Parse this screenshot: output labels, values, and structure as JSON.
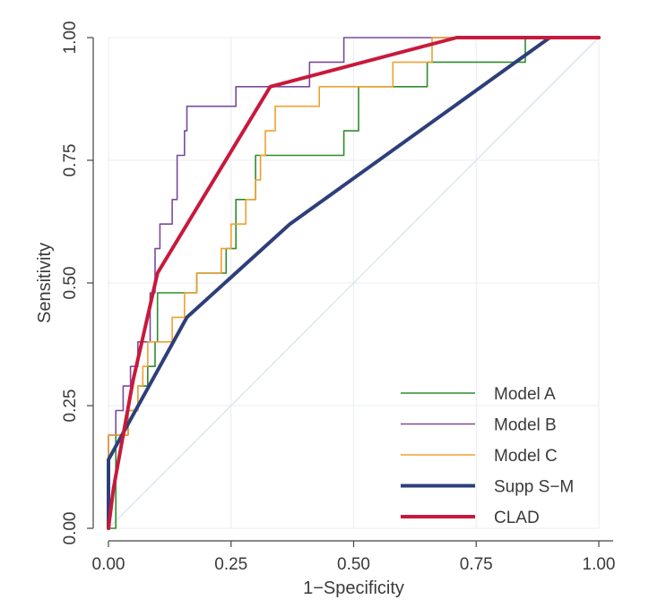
{
  "chart_data": {
    "type": "line",
    "title": "",
    "xlabel": "1−Specificity",
    "ylabel": "Sensitivity",
    "xlim": [
      0,
      1
    ],
    "ylim": [
      0,
      1
    ],
    "xticks": [
      "0.00",
      "0.25",
      "0.50",
      "0.75",
      "1.00"
    ],
    "yticks": [
      "0.00",
      "0.25",
      "0.50",
      "0.75",
      "1.00"
    ],
    "grid": true,
    "legend_position": "bottom-right",
    "reference_line": {
      "x": [
        0,
        1
      ],
      "y": [
        0,
        1
      ],
      "color": "#dfe8ee"
    },
    "series": [
      {
        "name": "Model A",
        "color": "#2e8b2e",
        "width": 1.6,
        "x": [
          0.0,
          0.015,
          0.015,
          0.04,
          0.04,
          0.06,
          0.06,
          0.08,
          0.08,
          0.095,
          0.095,
          0.1,
          0.1,
          0.18,
          0.18,
          0.24,
          0.24,
          0.26,
          0.26,
          0.3,
          0.3,
          0.45,
          0.45,
          0.48,
          0.48,
          0.51,
          0.51,
          0.62,
          0.62,
          0.65,
          0.65,
          0.83,
          0.83,
          0.85,
          0.85,
          0.89,
          1.0
        ],
        "y": [
          0.0,
          0.0,
          0.19,
          0.19,
          0.24,
          0.24,
          0.29,
          0.29,
          0.33,
          0.33,
          0.38,
          0.38,
          0.48,
          0.48,
          0.52,
          0.52,
          0.57,
          0.57,
          0.67,
          0.67,
          0.76,
          0.76,
          0.76,
          0.76,
          0.81,
          0.81,
          0.9,
          0.9,
          0.9,
          0.9,
          0.95,
          0.95,
          0.95,
          0.95,
          1.0,
          1.0,
          1.0
        ]
      },
      {
        "name": "Model B",
        "color": "#7a4a9a",
        "width": 1.6,
        "x": [
          0.0,
          0.0,
          0.015,
          0.015,
          0.03,
          0.03,
          0.045,
          0.045,
          0.06,
          0.06,
          0.085,
          0.085,
          0.095,
          0.095,
          0.105,
          0.105,
          0.13,
          0.13,
          0.14,
          0.14,
          0.155,
          0.155,
          0.16,
          0.16,
          0.21,
          0.21,
          0.26,
          0.26,
          0.27,
          0.27,
          0.36,
          0.36,
          0.41,
          0.41,
          0.42,
          0.42,
          0.48,
          0.48,
          0.57,
          0.57,
          0.63,
          0.63,
          1.0
        ],
        "y": [
          0.0,
          0.19,
          0.19,
          0.24,
          0.24,
          0.29,
          0.29,
          0.33,
          0.33,
          0.38,
          0.38,
          0.48,
          0.48,
          0.57,
          0.57,
          0.62,
          0.62,
          0.67,
          0.67,
          0.76,
          0.76,
          0.81,
          0.81,
          0.86,
          0.86,
          0.86,
          0.86,
          0.9,
          0.9,
          0.9,
          0.9,
          0.9,
          0.9,
          0.95,
          0.95,
          0.95,
          0.95,
          1.0,
          1.0,
          1.0,
          1.0,
          1.0,
          1.0
        ]
      },
      {
        "name": "Model C",
        "color": "#f0a030",
        "width": 1.6,
        "x": [
          0.0,
          0.0,
          0.04,
          0.04,
          0.06,
          0.06,
          0.07,
          0.07,
          0.08,
          0.08,
          0.13,
          0.13,
          0.155,
          0.155,
          0.18,
          0.18,
          0.23,
          0.23,
          0.25,
          0.25,
          0.28,
          0.28,
          0.3,
          0.3,
          0.31,
          0.31,
          0.32,
          0.32,
          0.34,
          0.34,
          0.36,
          0.36,
          0.43,
          0.43,
          0.48,
          0.48,
          0.54,
          0.54,
          0.58,
          0.58,
          0.62,
          0.62,
          0.66,
          0.66,
          1.0
        ],
        "y": [
          0.0,
          0.19,
          0.19,
          0.24,
          0.24,
          0.29,
          0.29,
          0.33,
          0.33,
          0.38,
          0.38,
          0.43,
          0.43,
          0.48,
          0.48,
          0.52,
          0.52,
          0.57,
          0.57,
          0.62,
          0.62,
          0.67,
          0.67,
          0.71,
          0.71,
          0.76,
          0.76,
          0.81,
          0.81,
          0.86,
          0.86,
          0.86,
          0.86,
          0.9,
          0.9,
          0.9,
          0.9,
          0.9,
          0.9,
          0.95,
          0.95,
          0.95,
          0.95,
          1.0,
          1.0
        ]
      },
      {
        "name": "Supp S−M",
        "color": "#2d3f7a",
        "width": 4,
        "x": [
          0.0,
          0.0,
          0.16,
          0.37,
          0.9,
          1.0
        ],
        "y": [
          0.0,
          0.14,
          0.43,
          0.62,
          1.0,
          1.0
        ]
      },
      {
        "name": "CLAD",
        "color": "#c8193c",
        "width": 4,
        "x": [
          0.0,
          0.01,
          0.05,
          0.1,
          0.33,
          0.71,
          1.0
        ],
        "y": [
          0.0,
          0.08,
          0.3,
          0.52,
          0.9,
          1.0,
          1.0
        ]
      }
    ]
  }
}
